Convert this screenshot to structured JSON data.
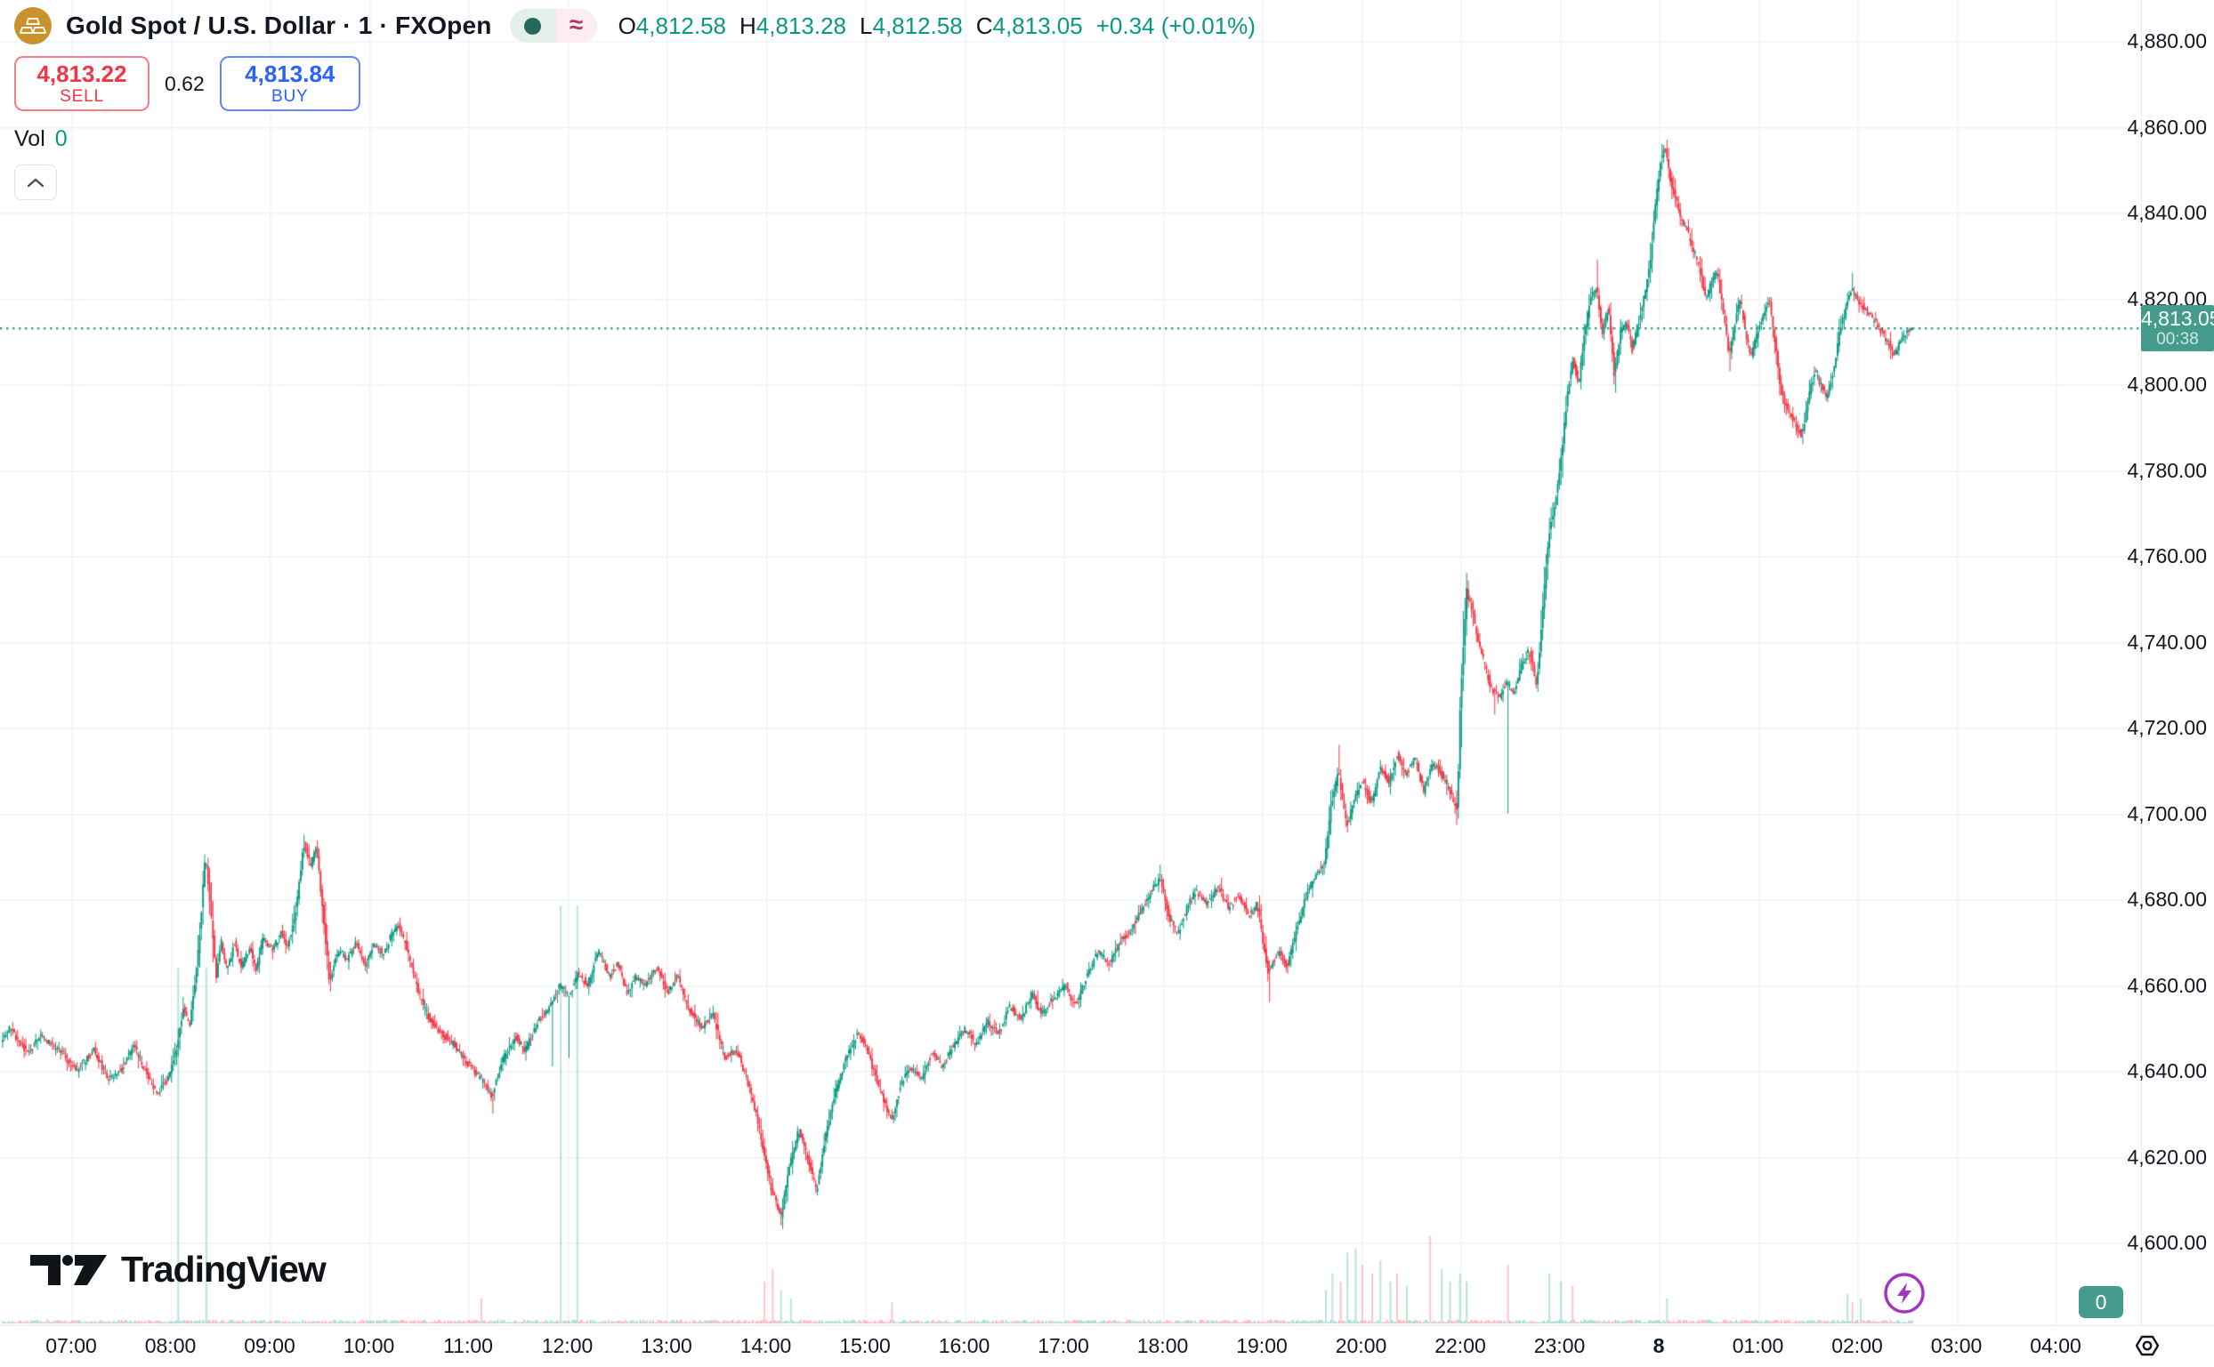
{
  "header": {
    "title": "Gold Spot / U.S. Dollar · 1 · FXOpen",
    "status": {
      "approx": "≈"
    },
    "ohlc": {
      "o_label": "O",
      "o": "4,812.58",
      "h_label": "H",
      "h": "4,813.28",
      "l_label": "L",
      "l": "4,812.58",
      "c_label": "C",
      "c": "4,813.05",
      "change": "+0.34 (+0.01%)"
    }
  },
  "order_panel": {
    "sell_price": "4,813.22",
    "sell_label": "SELL",
    "spread": "0.62",
    "buy_price": "4,813.84",
    "buy_label": "BUY"
  },
  "volume_row": {
    "label": "Vol",
    "value": "0"
  },
  "price_scale": {
    "labels": [
      "4,880.00",
      "4,860.00",
      "4,840.00",
      "4,820.00",
      "4,800.00",
      "4,780.00",
      "4,760.00",
      "4,740.00",
      "4,720.00",
      "4,700.00",
      "4,680.00",
      "4,660.00",
      "4,640.00",
      "4,620.00",
      "4,600.00"
    ],
    "current_price": "4,813.05",
    "countdown": "00:38",
    "volume_axis_value": "0"
  },
  "time_scale": {
    "labels": [
      {
        "text": "07:00",
        "h": 7
      },
      {
        "text": "08:00",
        "h": 8
      },
      {
        "text": "09:00",
        "h": 9
      },
      {
        "text": "10:00",
        "h": 10
      },
      {
        "text": "11:00",
        "h": 11
      },
      {
        "text": "12:00",
        "h": 12
      },
      {
        "text": "13:00",
        "h": 13
      },
      {
        "text": "14:00",
        "h": 14
      },
      {
        "text": "15:00",
        "h": 15
      },
      {
        "text": "16:00",
        "h": 16
      },
      {
        "text": "17:00",
        "h": 17
      },
      {
        "text": "18:00",
        "h": 18
      },
      {
        "text": "19:00",
        "h": 19
      },
      {
        "text": "20:00",
        "h": 20
      },
      {
        "text": "22:00",
        "h": 22
      },
      {
        "text": "23:00",
        "h": 23
      },
      {
        "text": "8",
        "h": 24,
        "bold": true
      },
      {
        "text": "01:00",
        "h": 25
      },
      {
        "text": "02:00",
        "h": 26
      },
      {
        "text": "03:00",
        "h": 27
      },
      {
        "text": "04:00",
        "h": 28
      }
    ]
  },
  "watermark": "TradingView",
  "colors": {
    "up": "#089981",
    "down": "#f23645",
    "sell_red": "#f23645",
    "buy_blue": "#2962ff",
    "badge_teal": "#459c8c",
    "price_line": "#2f9c8a",
    "accent_purple": "#9c27b0",
    "text": "#131722",
    "grid": "#f0f3fa",
    "gold": "#c9922c"
  },
  "chart_data": {
    "type": "candlestick",
    "symbol": "Gold Spot / U.S. Dollar (FXOpen)",
    "interval_minutes": 1,
    "price_range": [
      4600,
      4880
    ],
    "grid_step": 20,
    "session_gap_skipped_hour": 21,
    "current_price": 4813.05,
    "last_candle": {
      "o": 4812.58,
      "h": 4813.28,
      "l": 4812.58,
      "c": 4813.05
    },
    "price_path": [
      [
        6.25,
        4646
      ],
      [
        6.39,
        4650
      ],
      [
        6.57,
        4644
      ],
      [
        6.7,
        4648
      ],
      [
        6.88,
        4645
      ],
      [
        7.06,
        4640
      ],
      [
        7.24,
        4645
      ],
      [
        7.38,
        4638
      ],
      [
        7.51,
        4640
      ],
      [
        7.64,
        4646
      ],
      [
        7.75,
        4640
      ],
      [
        7.87,
        4635
      ],
      [
        7.98,
        4638
      ],
      [
        8.07,
        4645
      ],
      [
        8.14,
        4655
      ],
      [
        8.2,
        4650
      ],
      [
        8.29,
        4668
      ],
      [
        8.36,
        4690
      ],
      [
        8.42,
        4676
      ],
      [
        8.47,
        4662
      ],
      [
        8.52,
        4670
      ],
      [
        8.58,
        4663
      ],
      [
        8.65,
        4670
      ],
      [
        8.72,
        4664
      ],
      [
        8.81,
        4669
      ],
      [
        8.87,
        4663
      ],
      [
        8.94,
        4671
      ],
      [
        9.03,
        4668
      ],
      [
        9.12,
        4672
      ],
      [
        9.19,
        4669
      ],
      [
        9.27,
        4677
      ],
      [
        9.35,
        4693
      ],
      [
        9.42,
        4688
      ],
      [
        9.48,
        4692
      ],
      [
        9.54,
        4678
      ],
      [
        9.61,
        4661
      ],
      [
        9.7,
        4668
      ],
      [
        9.79,
        4666
      ],
      [
        9.88,
        4670
      ],
      [
        9.97,
        4664
      ],
      [
        10.06,
        4670
      ],
      [
        10.15,
        4667
      ],
      [
        10.24,
        4672
      ],
      [
        10.31,
        4674
      ],
      [
        10.4,
        4668
      ],
      [
        10.51,
        4658
      ],
      [
        10.62,
        4652
      ],
      [
        10.73,
        4649
      ],
      [
        10.87,
        4646
      ],
      [
        11.0,
        4642
      ],
      [
        11.14,
        4638
      ],
      [
        11.25,
        4634
      ],
      [
        11.36,
        4643
      ],
      [
        11.49,
        4648
      ],
      [
        11.58,
        4645
      ],
      [
        11.72,
        4652
      ],
      [
        11.83,
        4655
      ],
      [
        11.94,
        4660
      ],
      [
        12.02,
        4657
      ],
      [
        12.12,
        4663
      ],
      [
        12.21,
        4660
      ],
      [
        12.32,
        4668
      ],
      [
        12.43,
        4662
      ],
      [
        12.52,
        4665
      ],
      [
        12.61,
        4658
      ],
      [
        12.7,
        4662
      ],
      [
        12.79,
        4660
      ],
      [
        12.91,
        4664
      ],
      [
        13.02,
        4658
      ],
      [
        13.12,
        4662
      ],
      [
        13.24,
        4654
      ],
      [
        13.36,
        4650
      ],
      [
        13.48,
        4653
      ],
      [
        13.6,
        4643
      ],
      [
        13.71,
        4645
      ],
      [
        13.82,
        4638
      ],
      [
        13.91,
        4630
      ],
      [
        13.98,
        4622
      ],
      [
        14.07,
        4612
      ],
      [
        14.16,
        4606
      ],
      [
        14.25,
        4618
      ],
      [
        14.34,
        4626
      ],
      [
        14.43,
        4620
      ],
      [
        14.52,
        4612
      ],
      [
        14.61,
        4625
      ],
      [
        14.72,
        4636
      ],
      [
        14.82,
        4643
      ],
      [
        14.94,
        4649
      ],
      [
        15.03,
        4645
      ],
      [
        15.12,
        4638
      ],
      [
        15.21,
        4632
      ],
      [
        15.28,
        4628
      ],
      [
        15.36,
        4636
      ],
      [
        15.45,
        4641
      ],
      [
        15.57,
        4638
      ],
      [
        15.68,
        4644
      ],
      [
        15.79,
        4641
      ],
      [
        15.9,
        4646
      ],
      [
        16.01,
        4650
      ],
      [
        16.13,
        4646
      ],
      [
        16.24,
        4652
      ],
      [
        16.35,
        4648
      ],
      [
        16.46,
        4655
      ],
      [
        16.58,
        4652
      ],
      [
        16.69,
        4658
      ],
      [
        16.79,
        4653
      ],
      [
        16.91,
        4657
      ],
      [
        17.03,
        4660
      ],
      [
        17.13,
        4655
      ],
      [
        17.24,
        4662
      ],
      [
        17.36,
        4668
      ],
      [
        17.47,
        4665
      ],
      [
        17.58,
        4670
      ],
      [
        17.69,
        4673
      ],
      [
        17.81,
        4678
      ],
      [
        17.9,
        4682
      ],
      [
        17.98,
        4685
      ],
      [
        18.07,
        4676
      ],
      [
        18.16,
        4672
      ],
      [
        18.25,
        4678
      ],
      [
        18.34,
        4682
      ],
      [
        18.46,
        4679
      ],
      [
        18.57,
        4683
      ],
      [
        18.67,
        4678
      ],
      [
        18.78,
        4681
      ],
      [
        18.88,
        4676
      ],
      [
        18.96,
        4679
      ],
      [
        19.07,
        4663
      ],
      [
        19.18,
        4668
      ],
      [
        19.26,
        4664
      ],
      [
        19.35,
        4672
      ],
      [
        19.44,
        4680
      ],
      [
        19.55,
        4686
      ],
      [
        19.64,
        4689
      ],
      [
        19.7,
        4701
      ],
      [
        19.78,
        4710
      ],
      [
        19.86,
        4697
      ],
      [
        19.94,
        4703
      ],
      [
        20.02,
        4708
      ],
      [
        20.11,
        4702
      ],
      [
        20.2,
        4711
      ],
      [
        20.29,
        4707
      ],
      [
        20.37,
        4714
      ],
      [
        20.46,
        4709
      ],
      [
        20.55,
        4713
      ],
      [
        20.64,
        4705
      ],
      [
        20.73,
        4712
      ],
      [
        20.82,
        4709
      ],
      [
        20.9,
        4705
      ],
      [
        20.98,
        4701
      ],
      [
        22.0,
        4722
      ],
      [
        22.07,
        4752
      ],
      [
        22.12,
        4748
      ],
      [
        22.18,
        4741
      ],
      [
        22.25,
        4735
      ],
      [
        22.32,
        4729
      ],
      [
        22.4,
        4727
      ],
      [
        22.48,
        4731
      ],
      [
        22.54,
        4728
      ],
      [
        22.62,
        4734
      ],
      [
        22.7,
        4738
      ],
      [
        22.78,
        4730
      ],
      [
        22.84,
        4748
      ],
      [
        22.9,
        4765
      ],
      [
        22.96,
        4772
      ],
      [
        23.02,
        4782
      ],
      [
        23.08,
        4796
      ],
      [
        23.14,
        4806
      ],
      [
        23.2,
        4800
      ],
      [
        23.26,
        4812
      ],
      [
        23.32,
        4820
      ],
      [
        23.38,
        4823
      ],
      [
        23.44,
        4812
      ],
      [
        23.5,
        4818
      ],
      [
        23.56,
        4802
      ],
      [
        23.62,
        4812
      ],
      [
        23.68,
        4815
      ],
      [
        23.74,
        4808
      ],
      [
        23.8,
        4814
      ],
      [
        23.86,
        4820
      ],
      [
        23.92,
        4828
      ],
      [
        23.98,
        4843
      ],
      [
        24.03,
        4853
      ],
      [
        24.08,
        4855
      ],
      [
        24.12,
        4848
      ],
      [
        24.18,
        4843
      ],
      [
        24.24,
        4838
      ],
      [
        24.29,
        4836
      ],
      [
        24.35,
        4832
      ],
      [
        24.42,
        4827
      ],
      [
        24.48,
        4820
      ],
      [
        24.54,
        4824
      ],
      [
        24.6,
        4826
      ],
      [
        24.66,
        4816
      ],
      [
        24.72,
        4807
      ],
      [
        24.78,
        4815
      ],
      [
        24.83,
        4820
      ],
      [
        24.88,
        4812
      ],
      [
        24.94,
        4806
      ],
      [
        25.0,
        4812
      ],
      [
        25.06,
        4816
      ],
      [
        25.12,
        4820
      ],
      [
        25.18,
        4810
      ],
      [
        25.24,
        4798
      ],
      [
        25.31,
        4794
      ],
      [
        25.38,
        4791
      ],
      [
        25.45,
        4788
      ],
      [
        25.52,
        4797
      ],
      [
        25.58,
        4803
      ],
      [
        25.64,
        4800
      ],
      [
        25.7,
        4797
      ],
      [
        25.76,
        4802
      ],
      [
        25.83,
        4812
      ],
      [
        25.91,
        4819
      ],
      [
        25.96,
        4822
      ],
      [
        26.03,
        4819
      ],
      [
        26.1,
        4817
      ],
      [
        26.18,
        4815
      ],
      [
        26.25,
        4812
      ],
      [
        26.32,
        4810
      ],
      [
        26.38,
        4807
      ],
      [
        26.44,
        4810
      ],
      [
        26.5,
        4812
      ],
      [
        26.56,
        4813.05
      ]
    ],
    "wick_extremes": [
      {
        "t": 9.35,
        "p": 4695,
        "side": "high"
      },
      {
        "t": 11.25,
        "p": 4630,
        "side": "low"
      },
      {
        "t": 11.85,
        "p": 4641,
        "side": "low"
      },
      {
        "t": 12.02,
        "p": 4643,
        "side": "low"
      },
      {
        "t": 14.16,
        "p": 4604,
        "side": "low"
      },
      {
        "t": 17.98,
        "p": 4688,
        "side": "high"
      },
      {
        "t": 19.07,
        "p": 4656,
        "side": "low"
      },
      {
        "t": 19.78,
        "p": 4716,
        "side": "high"
      },
      {
        "t": 22.07,
        "p": 4756,
        "side": "high"
      },
      {
        "t": 22.35,
        "p": 4723,
        "side": "low"
      },
      {
        "t": 22.48,
        "p": 4700,
        "side": "low"
      },
      {
        "t": 23.38,
        "p": 4829,
        "side": "high"
      },
      {
        "t": 23.56,
        "p": 4798,
        "side": "low"
      },
      {
        "t": 24.08,
        "p": 4857,
        "side": "high"
      },
      {
        "t": 24.72,
        "p": 4803,
        "side": "low"
      },
      {
        "t": 25.45,
        "p": 4786,
        "side": "low"
      },
      {
        "t": 25.96,
        "p": 4826,
        "side": "high"
      }
    ],
    "volume_spikes": [
      [
        8.08,
        0.85,
        "up"
      ],
      [
        8.36,
        0.85,
        "up"
      ],
      [
        11.14,
        0.06,
        "down"
      ],
      [
        11.93,
        1,
        "up"
      ],
      [
        12.1,
        1,
        "up"
      ],
      [
        13.98,
        0.1,
        "down"
      ],
      [
        14.07,
        0.13,
        "down"
      ],
      [
        14.16,
        0.08,
        "up"
      ],
      [
        14.25,
        0.06,
        "up"
      ],
      [
        15.28,
        0.05,
        "down"
      ],
      [
        19.64,
        0.08,
        "up"
      ],
      [
        19.72,
        0.12,
        "up"
      ],
      [
        19.8,
        0.1,
        "down"
      ],
      [
        19.86,
        0.17,
        "up"
      ],
      [
        19.94,
        0.18,
        "up"
      ],
      [
        20.02,
        0.14,
        "down"
      ],
      [
        20.11,
        0.12,
        "down"
      ],
      [
        20.2,
        0.15,
        "up"
      ],
      [
        20.29,
        0.1,
        "up"
      ],
      [
        20.37,
        0.12,
        "down"
      ],
      [
        20.46,
        0.09,
        "up"
      ],
      [
        20.69,
        0.21,
        "down"
      ],
      [
        20.82,
        0.13,
        "up"
      ],
      [
        20.9,
        0.1,
        "up"
      ],
      [
        22.0,
        0.12,
        "up"
      ],
      [
        22.07,
        0.1,
        "up"
      ],
      [
        22.48,
        0.14,
        "down"
      ],
      [
        22.9,
        0.12,
        "up"
      ],
      [
        23.02,
        0.1,
        "up"
      ],
      [
        23.14,
        0.09,
        "down"
      ],
      [
        24.08,
        0.06,
        "up"
      ],
      [
        25.91,
        0.07,
        "up"
      ],
      [
        25.96,
        0.05,
        "down"
      ],
      [
        26.03,
        0.06,
        "up"
      ]
    ]
  }
}
